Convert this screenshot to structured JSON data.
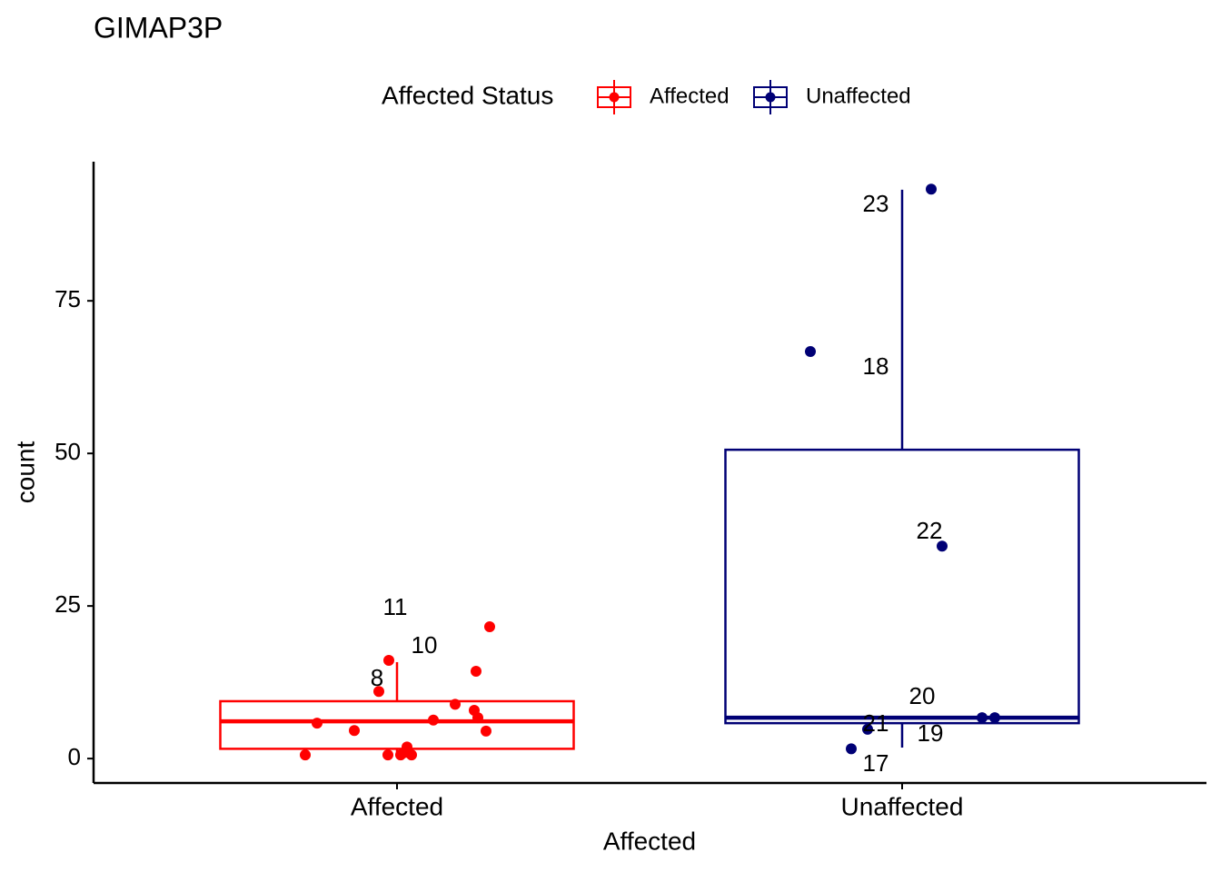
{
  "chart_data": {
    "type": "box",
    "title": "GIMAP3P",
    "x_label": "Affected",
    "y_label": "count",
    "legend_title": "Affected Status",
    "legend_position": "top",
    "categories": [
      "Affected",
      "Unaffected"
    ],
    "ylim": [
      -4,
      97.8
    ],
    "yticks": [
      0,
      25,
      50,
      75
    ],
    "grid": false,
    "series": [
      {
        "name": "Affected",
        "color": "#ff0000",
        "whisker_low": 0.6,
        "q1": 1.6,
        "median": 6.1,
        "q3": 9.4,
        "whisker_high": 15.8,
        "points": [
          21.6,
          16.1,
          14.3,
          11.0,
          8.9,
          7.9,
          6.7,
          6.3,
          5.8,
          4.6,
          4.5,
          1.9,
          0.6,
          0.6,
          0.6,
          0.6,
          1.0
        ]
      },
      {
        "name": "Unaffected",
        "color": "#000075",
        "whisker_low": 1.8,
        "q1": 5.8,
        "median": 6.7,
        "q3": 50.6,
        "whisker_high": 93.2,
        "points": [
          93.3,
          66.7,
          34.8,
          6.7,
          6.7,
          4.8,
          1.6
        ]
      }
    ],
    "annotations": [
      "11",
      "10",
      "8",
      "23",
      "18",
      "22",
      "20",
      "21",
      "19",
      "17"
    ]
  }
}
